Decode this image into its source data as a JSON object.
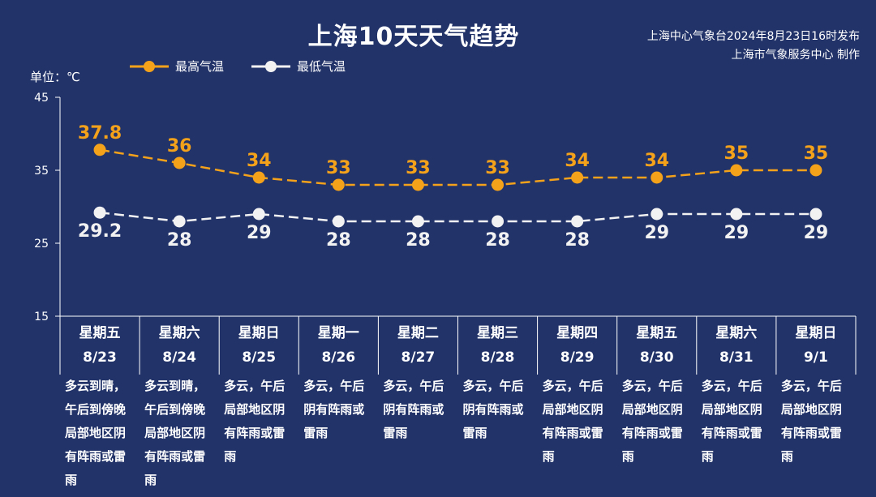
{
  "header": {
    "title": "上海10天天气趋势",
    "source_line1": "上海中心气象台2024年8月23日16时发布",
    "source_line2": "上海市气象服务中心 制作",
    "unit_label": "单位：℃"
  },
  "colors": {
    "background": "#22336a",
    "high": "#f5a21b",
    "low": "#f2f2f2",
    "axis": "#ffffff"
  },
  "chart_data": {
    "type": "line",
    "title": "上海10天天气趋势",
    "ylabel": "单位：℃",
    "ylim": [
      15,
      45
    ],
    "yticks": [
      15,
      25,
      35,
      45
    ],
    "grid": false,
    "legend_position": "top-left",
    "categories": [
      "8/23",
      "8/24",
      "8/25",
      "8/26",
      "8/27",
      "8/28",
      "8/29",
      "8/30",
      "8/31",
      "9/1"
    ],
    "weekdays": [
      "星期五",
      "星期六",
      "星期日",
      "星期一",
      "星期二",
      "星期三",
      "星期四",
      "星期五",
      "星期六",
      "星期日"
    ],
    "weather": [
      "多云到晴，午后到傍晚局部地区阴有阵雨或雷雨",
      "多云到晴，午后到傍晚局部地区阴有阵雨或雷雨",
      "多云，午后局部地区阴有阵雨或雷雨",
      "多云，午后阴有阵雨或雷雨",
      "多云，午后阴有阵雨或雷雨",
      "多云，午后阴有阵雨或雷雨",
      "多云，午后局部地区阴有阵雨或雷雨",
      "多云，午后局部地区阴有阵雨或雷雨",
      "多云，午后局部地区阴有阵雨或雷雨",
      "多云，午后局部地区阴有阵雨或雷雨"
    ],
    "series": [
      {
        "name": "最高气温",
        "values": [
          37.8,
          36,
          34,
          33,
          33,
          33,
          34,
          34,
          35,
          35
        ],
        "labels": [
          "37.8",
          "36",
          "34",
          "33",
          "33",
          "33",
          "34",
          "34",
          "35",
          "35"
        ]
      },
      {
        "name": "最低气温",
        "values": [
          29.2,
          28,
          29,
          28,
          28,
          28,
          28,
          29,
          29,
          29
        ],
        "labels": [
          "29.2",
          "28",
          "29",
          "28",
          "28",
          "28",
          "28",
          "29",
          "29",
          "29"
        ]
      }
    ]
  }
}
